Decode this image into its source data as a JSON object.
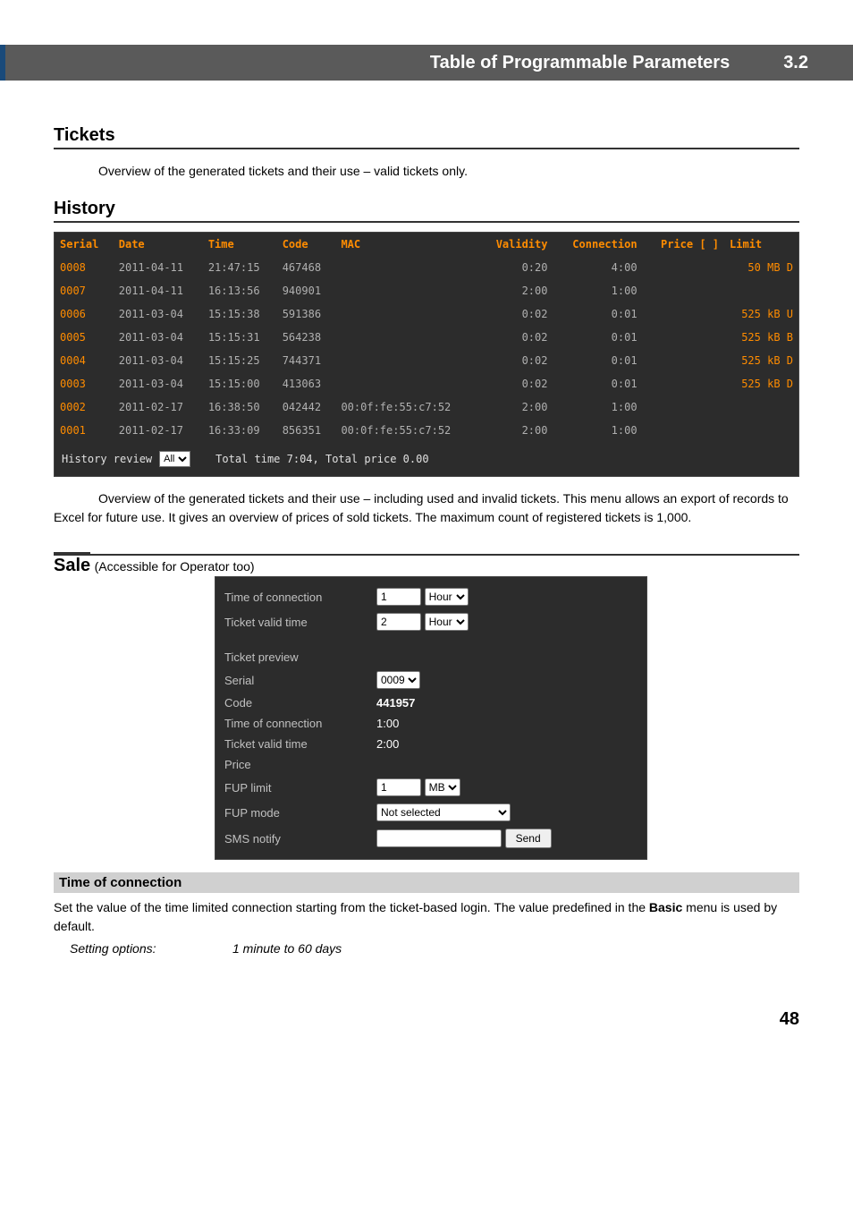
{
  "header": {
    "title": "Table of Programmable Parameters",
    "section_num": "3.2"
  },
  "tickets": {
    "heading": "Tickets",
    "desc": "Overview of the generated tickets and their use – valid tickets only."
  },
  "history": {
    "heading": "History",
    "columns": [
      "Serial",
      "Date",
      "Time",
      "Code",
      "MAC",
      "Validity",
      "Connection",
      "Price [ ]",
      "Limit"
    ],
    "rows": [
      {
        "serial": "0008",
        "date": "2011-04-11",
        "time": "21:47:15",
        "code": "467468",
        "mac": "",
        "validity": "0:20",
        "connection": "4:00",
        "price": "",
        "limit": "50 MB D"
      },
      {
        "serial": "0007",
        "date": "2011-04-11",
        "time": "16:13:56",
        "code": "940901",
        "mac": "",
        "validity": "2:00",
        "connection": "1:00",
        "price": "",
        "limit": ""
      },
      {
        "serial": "0006",
        "date": "2011-03-04",
        "time": "15:15:38",
        "code": "591386",
        "mac": "",
        "validity": "0:02",
        "connection": "0:01",
        "price": "",
        "limit": "525 kB U"
      },
      {
        "serial": "0005",
        "date": "2011-03-04",
        "time": "15:15:31",
        "code": "564238",
        "mac": "",
        "validity": "0:02",
        "connection": "0:01",
        "price": "",
        "limit": "525 kB B"
      },
      {
        "serial": "0004",
        "date": "2011-03-04",
        "time": "15:15:25",
        "code": "744371",
        "mac": "",
        "validity": "0:02",
        "connection": "0:01",
        "price": "",
        "limit": "525 kB D"
      },
      {
        "serial": "0003",
        "date": "2011-03-04",
        "time": "15:15:00",
        "code": "413063",
        "mac": "",
        "validity": "0:02",
        "connection": "0:01",
        "price": "",
        "limit": "525 kB D"
      },
      {
        "serial": "0002",
        "date": "2011-02-17",
        "time": "16:38:50",
        "code": "042442",
        "mac": "00:0f:fe:55:c7:52",
        "validity": "2:00",
        "connection": "1:00",
        "price": "",
        "limit": ""
      },
      {
        "serial": "0001",
        "date": "2011-02-17",
        "time": "16:33:09",
        "code": "856351",
        "mac": "00:0f:fe:55:c7:52",
        "validity": "2:00",
        "connection": "1:00",
        "price": "",
        "limit": ""
      }
    ],
    "footer_label": "History review",
    "footer_select": "All",
    "footer_summary": "Total time 7:04, Total price 0.00",
    "desc": "Overview of the generated tickets and their use – including used and invalid tickets. This menu allows an export of records to Excel for future use. It gives an overview of prices of sold tickets. The maximum count of registered tickets is 1,000."
  },
  "sale": {
    "heading": "Sale",
    "subheading": "(Accessible for Operator too)",
    "rows": {
      "time_conn_label": "Time of connection",
      "time_conn_val": "1",
      "time_conn_unit": "Hour",
      "ticket_valid_label": "Ticket valid time",
      "ticket_valid_val": "2",
      "ticket_valid_unit": "Hour",
      "preview_label": "Ticket preview",
      "serial_label": "Serial",
      "serial_val": "0009",
      "code_label": "Code",
      "code_val": "441957",
      "time_conn2_label": "Time of connection",
      "time_conn2_val": "1:00",
      "ticket_valid2_label": "Ticket valid time",
      "ticket_valid2_val": "2:00",
      "price_label": "Price",
      "fup_limit_label": "FUP limit",
      "fup_limit_val": "1",
      "fup_limit_unit": "MB",
      "fup_mode_label": "FUP mode",
      "fup_mode_val": "Not selected",
      "sms_label": "SMS notify",
      "sms_btn": "Send"
    }
  },
  "time_conn": {
    "heading": "Time of connection",
    "desc_a": "Set the value of the time limited connection starting from the ticket-based login. The value predefined in the ",
    "desc_bold": "Basic",
    "desc_b": " menu is used by default.",
    "setting_label": "Setting options:",
    "setting_val": "1 minute to 60 days"
  },
  "page": "48"
}
